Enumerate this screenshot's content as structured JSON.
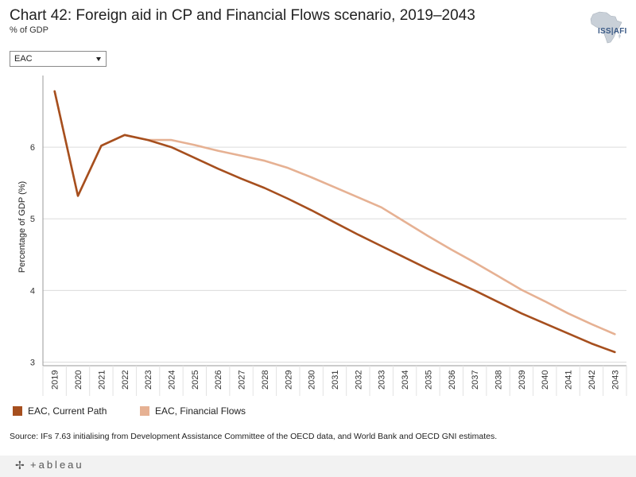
{
  "header": {
    "title": "Chart 42: Foreign aid in CP and Financial Flows scenario, 2019–2043",
    "subtitle": "% of GDP"
  },
  "logo": {
    "text": "ISS|AFI",
    "icon": "africa-map-icon"
  },
  "filter": {
    "selected": "EAC"
  },
  "chart_data": {
    "type": "line",
    "ylabel": "Percentage of GDP (%)",
    "ylim": [
      2.95,
      7.0
    ],
    "yticks": [
      3,
      4,
      5,
      6
    ],
    "grid": true,
    "legend_position": "bottom-left",
    "x": [
      "2019",
      "2020",
      "2021",
      "2022",
      "2023",
      "2024",
      "2025",
      "2026",
      "2027",
      "2028",
      "2029",
      "2030",
      "2031",
      "2032",
      "2033",
      "2034",
      "2035",
      "2036",
      "2037",
      "2038",
      "2039",
      "2040",
      "2041",
      "2042",
      "2043"
    ],
    "series": [
      {
        "name": "EAC, Current Path",
        "color": "#a64f1e",
        "values": [
          6.78,
          5.32,
          6.02,
          6.17,
          6.1,
          6.0,
          5.85,
          5.7,
          5.56,
          5.43,
          5.28,
          5.12,
          4.95,
          4.78,
          4.62,
          4.46,
          4.3,
          4.15,
          4.0,
          3.84,
          3.68,
          3.54,
          3.4,
          3.26,
          3.14
        ]
      },
      {
        "name": "EAC, Financial Flows",
        "color": "#e6b193",
        "values": [
          6.78,
          5.32,
          6.02,
          6.17,
          6.1,
          6.1,
          6.03,
          5.95,
          5.88,
          5.81,
          5.71,
          5.58,
          5.44,
          5.3,
          5.16,
          4.96,
          4.76,
          4.57,
          4.39,
          4.2,
          4.01,
          3.85,
          3.68,
          3.53,
          3.39
        ]
      }
    ]
  },
  "source": "Source: IFs 7.63 initialising from Development Assistance Committee of the OECD data, and World Bank and OECD GNI estimates.",
  "footer": {
    "brand": "+ableau",
    "icon": "tableau-plus-icon"
  }
}
